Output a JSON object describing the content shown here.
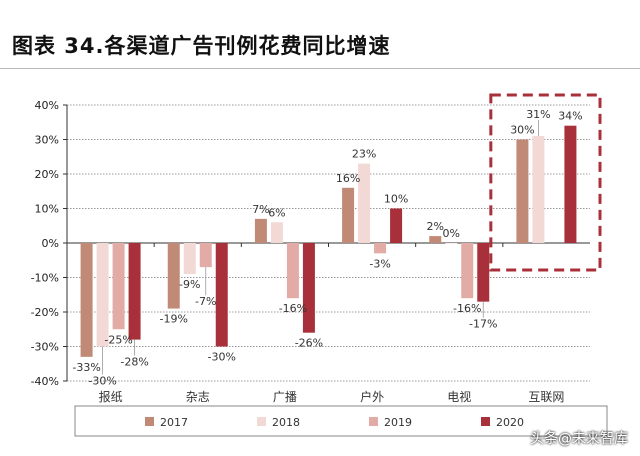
{
  "title": "图表 34.各渠道广告刊例花费同比增速",
  "watermark": "头条@未来智库",
  "chart_data": {
    "type": "bar",
    "categories": [
      "报纸",
      "杂志",
      "广播",
      "户外",
      "电视",
      "互联网"
    ],
    "series": [
      {
        "name": "2017",
        "color": "#c08a77",
        "values": [
          -33,
          -19,
          7,
          16,
          2,
          30
        ]
      },
      {
        "name": "2018",
        "color": "#f3d9d5",
        "values": [
          -30,
          -9,
          6,
          23,
          0,
          31
        ]
      },
      {
        "name": "2019",
        "color": "#e2aba6",
        "values": [
          -25,
          -7,
          -16,
          -3,
          -16,
          null
        ]
      },
      {
        "name": "2020",
        "color": "#a8303a",
        "values": [
          -28,
          -30,
          -26,
          10,
          -17,
          34
        ]
      }
    ],
    "ylim": [
      -40,
      40
    ],
    "yticks": [
      "-40%",
      "-30%",
      "-20%",
      "-10%",
      "0%",
      "10%",
      "20%",
      "30%",
      "40%"
    ],
    "grid": true,
    "legend": "bottom",
    "highlight": {
      "category": "互联网",
      "color": "#a8303a",
      "style": "dashed box"
    }
  }
}
